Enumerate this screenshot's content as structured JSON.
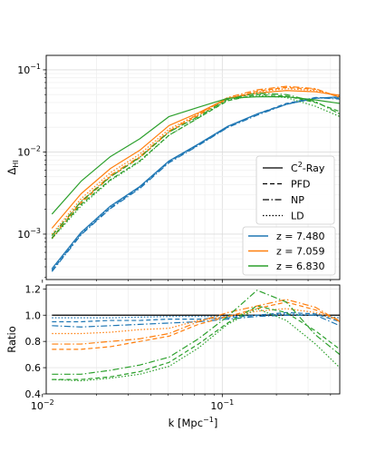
{
  "chart_data": [
    {
      "type": "line",
      "panel": "top",
      "xscale": "log",
      "yscale": "log",
      "xlim": [
        0.0105,
        0.45
      ],
      "ylim": [
        0.00028,
        0.15
      ],
      "grid": true,
      "ylabel": "Δ",
      "ylabel_sub": "HI",
      "yticks": [
        {
          "value": 0.001,
          "base": "10",
          "exp": "−3"
        },
        {
          "value": 0.01,
          "base": "10",
          "exp": "−2"
        },
        {
          "value": 0.1,
          "base": "10",
          "exp": "−1"
        }
      ],
      "x": [
        0.0113,
        0.0164,
        0.0239,
        0.0348,
        0.0506,
        0.0737,
        0.107,
        0.156,
        0.227,
        0.33,
        0.45
      ],
      "series": [
        {
          "method": "C2-Ray",
          "z": "7.480",
          "color": "#1f77b4",
          "dash": "solid",
          "values": [
            0.00038,
            0.00105,
            0.0022,
            0.0038,
            0.0078,
            0.0125,
            0.0205,
            0.029,
            0.038,
            0.045,
            0.047
          ]
        },
        {
          "method": "PFD",
          "z": "7.480",
          "color": "#1f77b4",
          "dash": "dashed",
          "values": [
            0.00036,
            0.001,
            0.0021,
            0.0037,
            0.0076,
            0.0122,
            0.02,
            0.029,
            0.039,
            0.046,
            0.045
          ]
        },
        {
          "method": "NP",
          "z": "7.480",
          "color": "#1f77b4",
          "dash": "dashdot",
          "values": [
            0.00035,
            0.00098,
            0.00205,
            0.0036,
            0.0074,
            0.012,
            0.0198,
            0.028,
            0.038,
            0.046,
            0.044
          ]
        },
        {
          "method": "LD",
          "z": "7.480",
          "color": "#1f77b4",
          "dash": "dotted",
          "values": [
            0.00037,
            0.00102,
            0.00215,
            0.00375,
            0.0077,
            0.0124,
            0.0203,
            0.0288,
            0.038,
            0.045,
            0.046
          ]
        },
        {
          "method": "C2-Ray",
          "z": "7.059",
          "color": "#ff7f0e",
          "dash": "solid",
          "values": [
            0.00118,
            0.0031,
            0.0063,
            0.0105,
            0.021,
            0.03,
            0.045,
            0.052,
            0.056,
            0.054,
            0.049
          ]
        },
        {
          "method": "PFD",
          "z": "7.059",
          "color": "#ff7f0e",
          "dash": "dashed",
          "values": [
            0.00088,
            0.0024,
            0.005,
            0.0085,
            0.0175,
            0.028,
            0.044,
            0.055,
            0.061,
            0.058,
            0.047
          ]
        },
        {
          "method": "NP",
          "z": "7.059",
          "color": "#ff7f0e",
          "dash": "dashdot",
          "values": [
            0.0009,
            0.0025,
            0.0052,
            0.0088,
            0.018,
            0.029,
            0.046,
            0.057,
            0.063,
            0.059,
            0.046
          ]
        },
        {
          "method": "LD",
          "z": "7.059",
          "color": "#ff7f0e",
          "dash": "dotted",
          "values": [
            0.001,
            0.0027,
            0.0056,
            0.0094,
            0.019,
            0.029,
            0.045,
            0.054,
            0.059,
            0.056,
            0.047
          ]
        },
        {
          "method": "C2-Ray",
          "z": "6.830",
          "color": "#2ca02c",
          "dash": "solid",
          "values": [
            0.00175,
            0.0044,
            0.0088,
            0.0145,
            0.027,
            0.035,
            0.045,
            0.047,
            0.047,
            0.043,
            0.039
          ]
        },
        {
          "method": "PFD",
          "z": "6.830",
          "color": "#2ca02c",
          "dash": "dashed",
          "values": [
            0.0009,
            0.0023,
            0.0046,
            0.0078,
            0.016,
            0.026,
            0.042,
            0.05,
            0.048,
            0.04,
            0.031
          ]
        },
        {
          "method": "NP",
          "z": "6.830",
          "color": "#2ca02c",
          "dash": "dashdot",
          "values": [
            0.00096,
            0.0025,
            0.005,
            0.0086,
            0.0175,
            0.027,
            0.044,
            0.052,
            0.05,
            0.041,
            0.029
          ]
        },
        {
          "method": "LD",
          "z": "6.830",
          "color": "#2ca02c",
          "dash": "dotted",
          "values": [
            0.00088,
            0.0022,
            0.0045,
            0.0076,
            0.016,
            0.026,
            0.043,
            0.049,
            0.046,
            0.036,
            0.027
          ]
        }
      ],
      "legend_methods": {
        "placement": "right",
        "entries": [
          {
            "label_base": "C",
            "label_sup": "2",
            "label_rest": "-Ray",
            "dash": "solid"
          },
          {
            "label": "PFD",
            "dash": "dashed"
          },
          {
            "label": "NP",
            "dash": "dashdot"
          },
          {
            "label": "LD",
            "dash": "dotted"
          }
        ]
      },
      "legend_redshifts": {
        "placement": "lower right",
        "entries": [
          {
            "label": "z = 7.480",
            "color": "#1f77b4"
          },
          {
            "label": "z = 7.059",
            "color": "#ff7f0e"
          },
          {
            "label": "z = 6.830",
            "color": "#2ca02c"
          }
        ]
      }
    },
    {
      "type": "line",
      "panel": "bottom",
      "xscale": "log",
      "yscale": "linear",
      "xlim": [
        0.0105,
        0.45
      ],
      "ylim": [
        0.4,
        1.23
      ],
      "grid": true,
      "xlabel": "k [Mpc",
      "xlabel_sup": "−1",
      "xlabel_end": "]",
      "ylabel": "Ratio",
      "yticks": [
        "0.4",
        "0.6",
        "0.8",
        "1.0",
        "1.2"
      ],
      "xticks": [
        {
          "value": 0.01,
          "base": "10",
          "exp": "−2"
        },
        {
          "value": 0.1,
          "base": "10",
          "exp": "−1"
        }
      ],
      "x": [
        0.0113,
        0.0164,
        0.0239,
        0.0348,
        0.0506,
        0.0737,
        0.107,
        0.156,
        0.227,
        0.33,
        0.45
      ],
      "series": [
        {
          "method": "C2-Ray",
          "z": "all",
          "color": "#000000",
          "dash": "solid",
          "values": [
            1.0,
            1.0,
            1.0,
            1.0,
            1.0,
            1.0,
            1.0,
            1.0,
            1.0,
            1.0,
            1.0
          ]
        },
        {
          "method": "PFD",
          "z": "7.480",
          "color": "#1f77b4",
          "dash": "dashed",
          "values": [
            0.95,
            0.95,
            0.96,
            0.96,
            0.97,
            0.97,
            0.98,
            1.0,
            1.02,
            1.01,
            0.95
          ]
        },
        {
          "method": "NP",
          "z": "7.480",
          "color": "#1f77b4",
          "dash": "dashdot",
          "values": [
            0.92,
            0.91,
            0.92,
            0.93,
            0.94,
            0.95,
            0.97,
            0.99,
            1.0,
            1.0,
            0.92
          ]
        },
        {
          "method": "LD",
          "z": "7.480",
          "color": "#1f77b4",
          "dash": "dotted",
          "values": [
            0.98,
            0.98,
            0.98,
            0.985,
            0.99,
            0.99,
            0.99,
            1.0,
            1.01,
            1.0,
            0.98
          ]
        },
        {
          "method": "PFD",
          "z": "7.059",
          "color": "#ff7f0e",
          "dash": "dashed",
          "values": [
            0.74,
            0.74,
            0.76,
            0.8,
            0.84,
            0.93,
            0.99,
            1.05,
            1.1,
            1.04,
            0.96
          ]
        },
        {
          "method": "NP",
          "z": "7.059",
          "color": "#ff7f0e",
          "dash": "dashdot",
          "values": [
            0.78,
            0.78,
            0.8,
            0.82,
            0.86,
            0.95,
            1.02,
            1.07,
            1.12,
            1.06,
            0.95
          ]
        },
        {
          "method": "LD",
          "z": "7.059",
          "color": "#ff7f0e",
          "dash": "dotted",
          "values": [
            0.86,
            0.86,
            0.87,
            0.89,
            0.9,
            0.96,
            0.99,
            1.03,
            1.05,
            1.02,
            0.96
          ]
        },
        {
          "method": "PFD",
          "z": "6.830",
          "color": "#2ca02c",
          "dash": "dashed",
          "values": [
            0.51,
            0.51,
            0.53,
            0.57,
            0.64,
            0.78,
            0.94,
            1.07,
            1.02,
            0.88,
            0.74
          ]
        },
        {
          "method": "NP",
          "z": "6.830",
          "color": "#2ca02c",
          "dash": "dashdot",
          "values": [
            0.55,
            0.55,
            0.58,
            0.62,
            0.68,
            0.82,
            0.99,
            1.19,
            1.1,
            0.85,
            0.7
          ]
        },
        {
          "method": "LD",
          "z": "6.830",
          "color": "#2ca02c",
          "dash": "dotted",
          "values": [
            0.51,
            0.5,
            0.52,
            0.55,
            0.61,
            0.75,
            0.93,
            1.05,
            0.96,
            0.78,
            0.6
          ]
        }
      ]
    }
  ]
}
